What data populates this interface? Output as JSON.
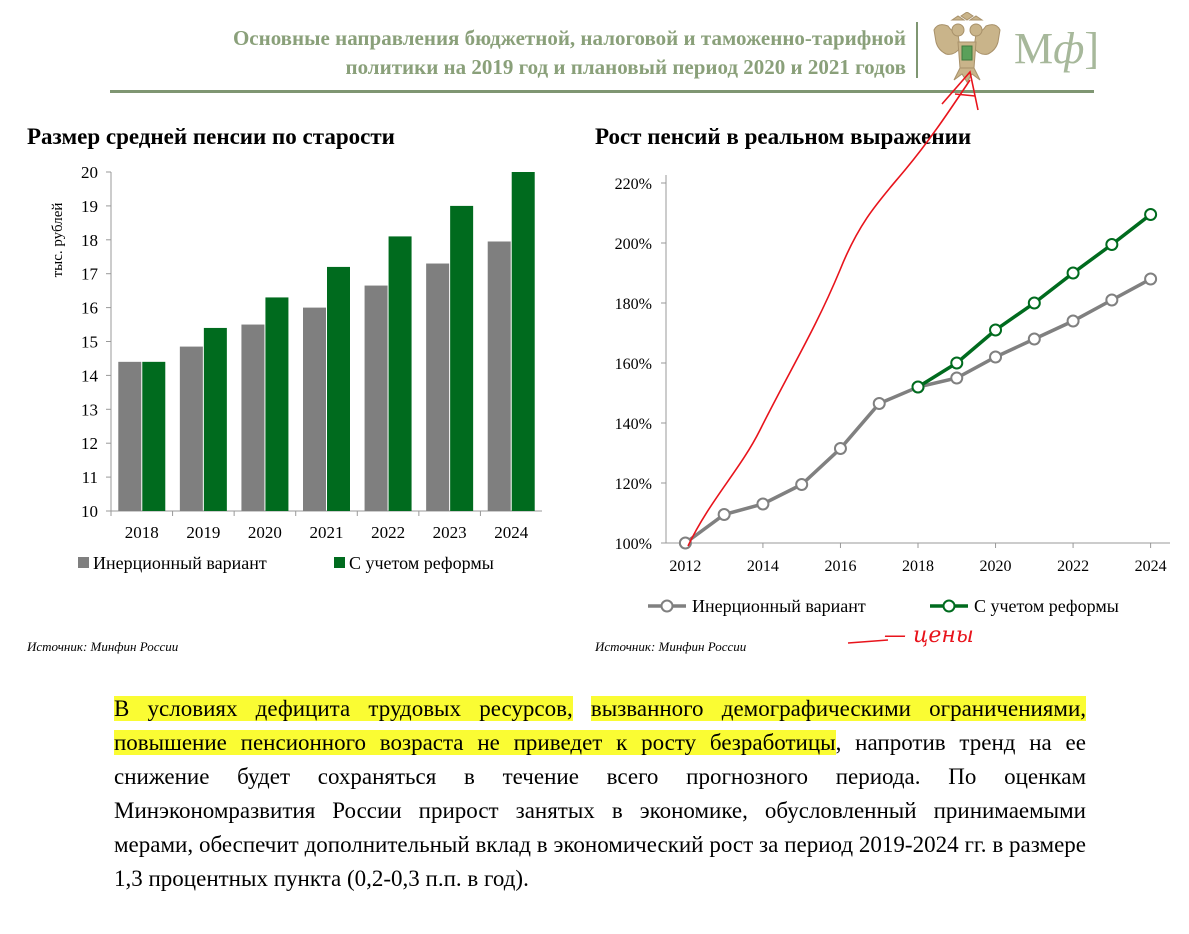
{
  "header": {
    "title_line1": "Основные направления бюджетной, налоговой и таможенно-тарифной",
    "title_line2": "политики на 2019 год и плановый период 2020 и 2021 годов",
    "logo_text_m": "М",
    "logo_text_f": "ф",
    "logo_bracket": "]"
  },
  "left_chart": {
    "title": "Размер средней пенсии по старости",
    "source": "Источник: Минфин России"
  },
  "right_chart": {
    "title": "Рост пенсий в реальном выражении",
    "source": "Источник: Минфин России"
  },
  "chart_data": [
    {
      "type": "bar",
      "title": "Размер средней пенсии по старости",
      "ylabel": "тыс. рублей",
      "xlabel": "",
      "categories": [
        "2018",
        "2019",
        "2020",
        "2021",
        "2022",
        "2023",
        "2024"
      ],
      "series": [
        {
          "name": "Инерционный вариант",
          "color": "#7f7f7f",
          "values": [
            14.4,
            14.85,
            15.5,
            16.0,
            16.65,
            17.3,
            17.95
          ]
        },
        {
          "name": "С учетом реформы",
          "color": "#006b1e",
          "values": [
            14.4,
            15.4,
            16.3,
            17.2,
            18.1,
            19.0,
            20.0
          ]
        }
      ],
      "ylim": [
        10,
        20
      ],
      "yticks": [
        "10",
        "11",
        "12",
        "13",
        "14",
        "15",
        "16",
        "17",
        "18",
        "19",
        "20"
      ],
      "grid": false,
      "legend": "bottom"
    },
    {
      "type": "line",
      "title": "Рост пенсий в реальном выражении",
      "xlabel": "",
      "ylabel": "",
      "x_ticks": [
        "2012",
        "2014",
        "2016",
        "2018",
        "2020",
        "2022",
        "2024"
      ],
      "y_ticks": [
        "100%",
        "120%",
        "140%",
        "160%",
        "180%",
        "200%",
        "220%"
      ],
      "xlim": [
        2012,
        2024
      ],
      "ylim": [
        100,
        220
      ],
      "series": [
        {
          "name": "Инерционный вариант",
          "color": "#808080",
          "x": [
            2012,
            2013,
            2014,
            2015,
            2016,
            2017,
            2018,
            2019,
            2020,
            2021,
            2022,
            2023,
            2024
          ],
          "y": [
            100,
            109.5,
            113,
            119.5,
            131.5,
            146.5,
            152,
            155,
            162,
            168,
            174,
            181,
            188
          ]
        },
        {
          "name": "С учетом реформы",
          "color": "#006b1e",
          "x": [
            2018,
            2019,
            2020,
            2021,
            2022,
            2023,
            2024
          ],
          "y": [
            152,
            160,
            171,
            180,
            190,
            199.5,
            209.5
          ]
        }
      ],
      "grid": false,
      "legend": "bottom"
    }
  ],
  "annotations": {
    "handwritten_note": "— цены",
    "handwritten_color": "#e8141c"
  },
  "body_text": {
    "hl1": "В условиях дефицита трудовых ресурсов,",
    "hl2": "вызванного демографическими ограничениями,",
    "hl3": "повышение пенсионного возраста не приведет к росту безработицы",
    "rest": ", напротив тренд на ее снижение будет сохраняться в течение всего прогнозного периода. По оценкам Минэкономразвития России прирост занятых в экономике, обусловленный принимаемыми мерами, обеспечит дополнительный вклад в экономический рост за период 2019-2024 гг. в размере 1,3 процентных пункта (0,2-0,3 п.п. в год)."
  },
  "colors": {
    "header_green": "#8aa07a",
    "highlight": "#fafc33",
    "bar_gray": "#7f7f7f",
    "bar_green": "#006b1e"
  }
}
